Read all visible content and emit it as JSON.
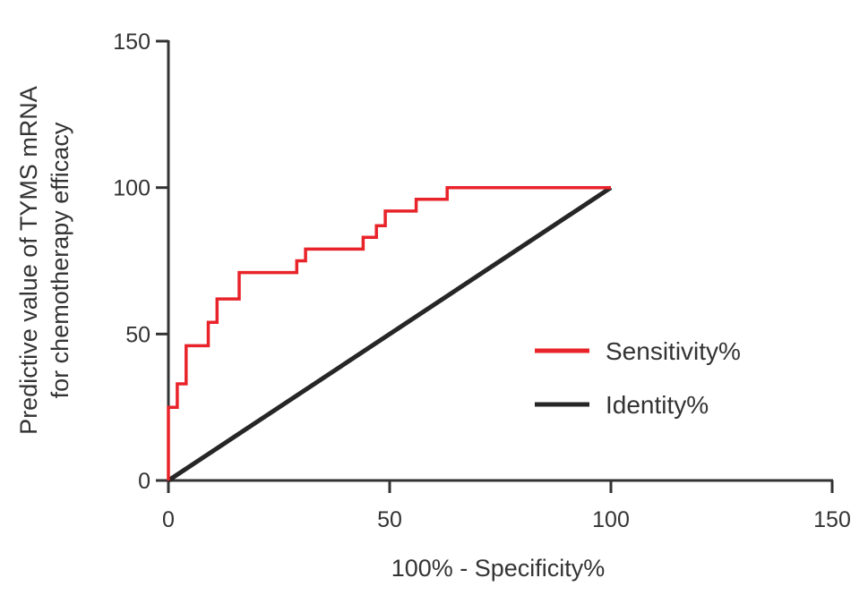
{
  "chart_data": {
    "type": "line",
    "xlabel": "100% - Specificity%",
    "ylabel_lines": [
      "Predictive value of TYMS mRNA",
      "for chemotherapy efficacy"
    ],
    "xlim": [
      0,
      150
    ],
    "ylim": [
      0,
      150
    ],
    "xticks": [
      0,
      50,
      100,
      150
    ],
    "yticks": [
      0,
      50,
      100,
      150
    ],
    "grid": false,
    "legend_position": "center-right",
    "series": [
      {
        "name": "Sensitivity%",
        "color": "#e8232a",
        "step": true,
        "points": [
          [
            0,
            0
          ],
          [
            0,
            25
          ],
          [
            2,
            25
          ],
          [
            2,
            33
          ],
          [
            4,
            33
          ],
          [
            4,
            46
          ],
          [
            9,
            46
          ],
          [
            9,
            54
          ],
          [
            11,
            54
          ],
          [
            11,
            62
          ],
          [
            16,
            62
          ],
          [
            16,
            71
          ],
          [
            29,
            71
          ],
          [
            29,
            75
          ],
          [
            31,
            75
          ],
          [
            31,
            79
          ],
          [
            44,
            79
          ],
          [
            44,
            83
          ],
          [
            47,
            83
          ],
          [
            47,
            87
          ],
          [
            49,
            87
          ],
          [
            49,
            92
          ],
          [
            56,
            92
          ],
          [
            56,
            96
          ],
          [
            63,
            96
          ],
          [
            63,
            100
          ],
          [
            100,
            100
          ]
        ]
      },
      {
        "name": "Identity%",
        "color": "#262626",
        "step": false,
        "points": [
          [
            0,
            0
          ],
          [
            100,
            100
          ]
        ]
      }
    ]
  }
}
